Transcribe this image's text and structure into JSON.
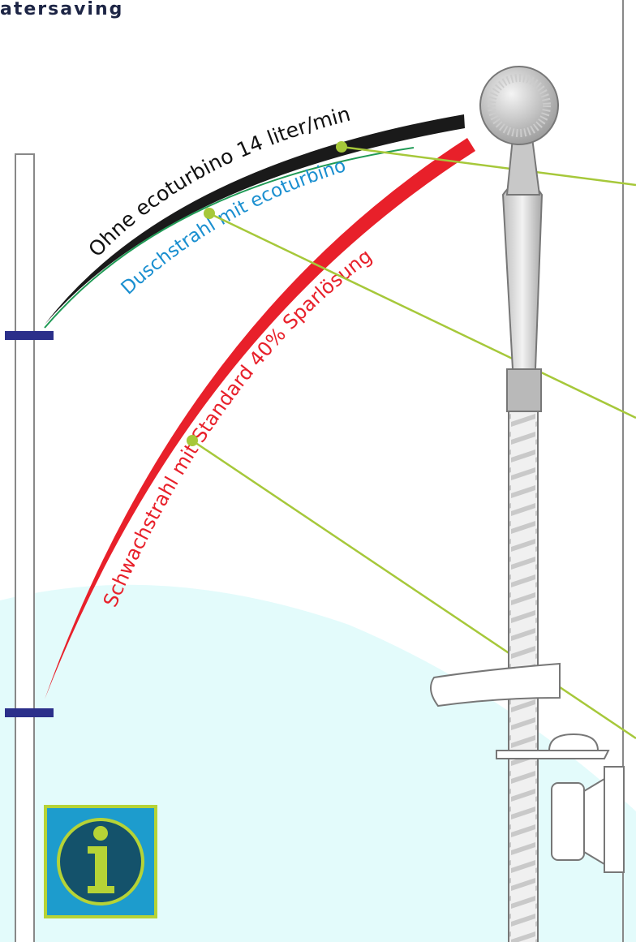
{
  "header": {
    "brand": "atersaving"
  },
  "labels": {
    "without": "Ohne ecoturbino 14 liter/min",
    "with": "Duschstrahl mit ecoturbino",
    "standard": "Schwachstrahl mit Standard 40% Sparlösung"
  }
}
